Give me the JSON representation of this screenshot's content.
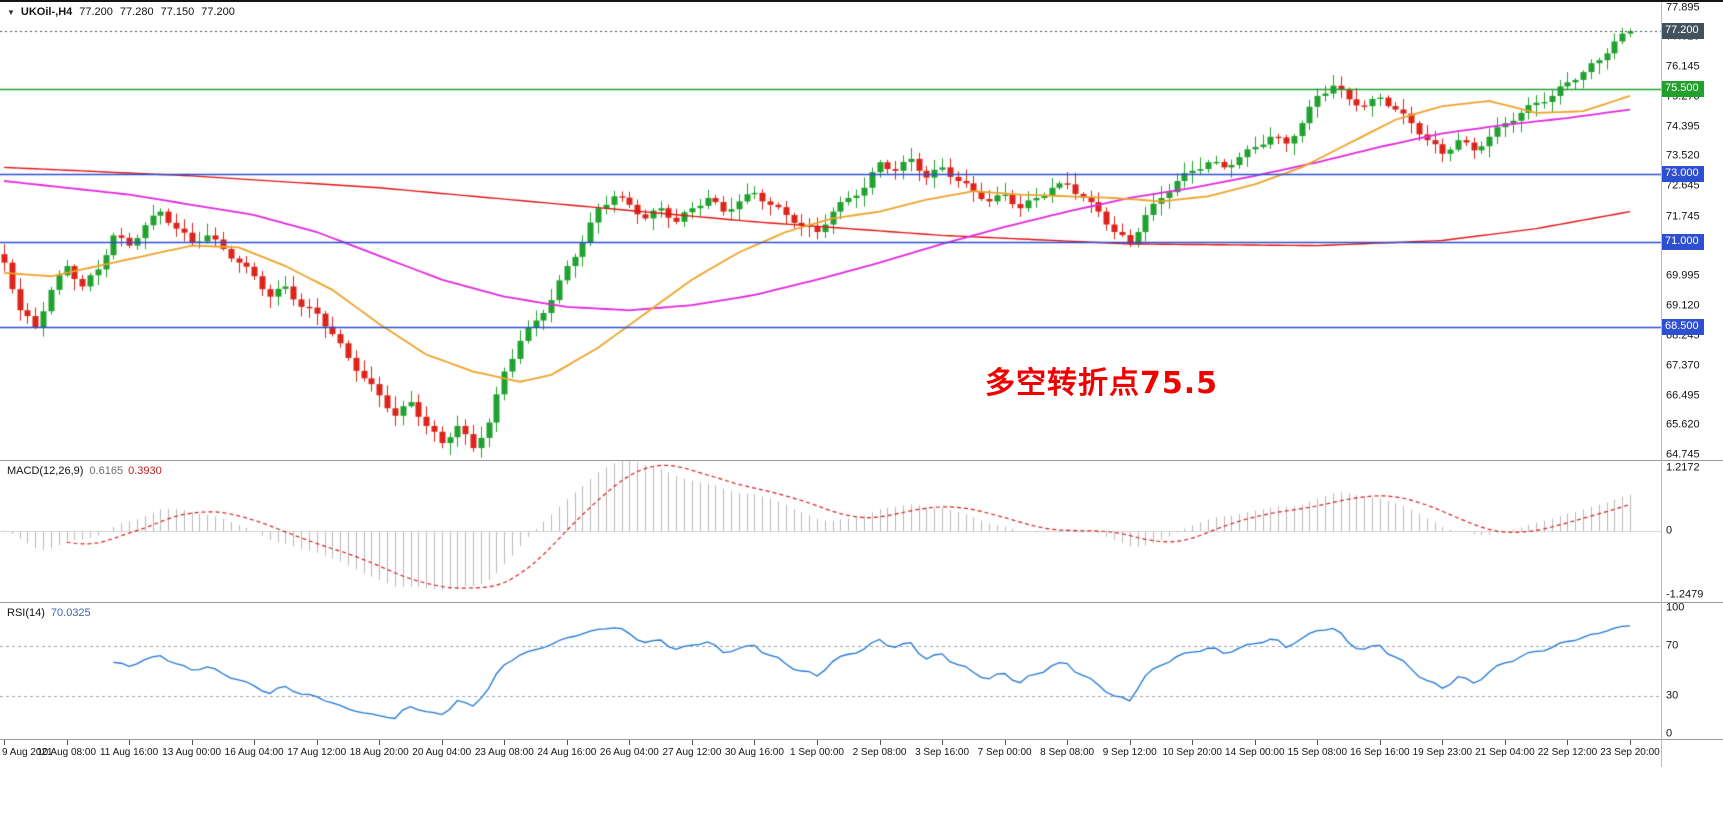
{
  "header": {
    "symbol_period": "UKOil-,H4",
    "open": "77.200",
    "high": "77.280",
    "low": "77.150",
    "close": "77.200"
  },
  "colors": {
    "up": "#21a12f",
    "down": "#dc241a",
    "ma_slow_red": "#e01414",
    "ma_mid_magenta": "#e128dd",
    "ma_fast_orange": "#eea32a",
    "hline_blue": "#2e4fd0",
    "hline_green": "#23a02c",
    "current_price": "#42525c",
    "macd_hist": "#b8b8b8",
    "macd_signal": "#d42020",
    "rsi_line": "#1f76d2",
    "rsi_level": "#9aa4b5",
    "text": "#141414",
    "separator": "#9a9a9a"
  },
  "macd_panel": {
    "title": "MACD(12,26,9)",
    "main_value": "0.6165",
    "signal_value": "0.3930"
  },
  "rsi_panel": {
    "title": "RSI(14)",
    "value": "70.0325"
  },
  "chart_data": {
    "type": "candlestick",
    "symbol": "UKOil",
    "timeframe": "H4",
    "last_ohlc": {
      "open": 77.2,
      "high": 77.28,
      "low": 77.15,
      "close": 77.2
    },
    "ylim": [
      64.6,
      78.06
    ],
    "y_tick_labels": [
      "77.895",
      "77.020",
      "76.145",
      "75.270",
      "74.395",
      "73.520",
      "72.645",
      "71.745",
      "70.870",
      "69.995",
      "69.120",
      "68.245",
      "67.370",
      "66.495",
      "65.620",
      "64.745"
    ],
    "x_tick_labels": [
      "9 Aug 2021",
      "10 Aug 08:00",
      "11 Aug 16:00",
      "13 Aug 00:00",
      "16 Aug 04:00",
      "17 Aug 12:00",
      "18 Aug 20:00",
      "20 Aug 04:00",
      "23 Aug 08:00",
      "24 Aug 16:00",
      "26 Aug 04:00",
      "27 Aug 12:00",
      "30 Aug 16:00",
      "1 Sep 00:00",
      "2 Sep 08:00",
      "3 Sep 16:00",
      "7 Sep 00:00",
      "8 Sep 08:00",
      "9 Sep 12:00",
      "10 Sep 20:00",
      "14 Sep 00:00",
      "15 Sep 08:00",
      "16 Sep 16:00",
      "19 Sep 23:00",
      "21 Sep 04:00",
      "22 Sep 12:00",
      "23 Sep 20:00"
    ],
    "candles_per_x_tick": 8,
    "closes": [
      70.4,
      69.62,
      69.0,
      68.83,
      68.5,
      68.97,
      69.6,
      70.03,
      70.3,
      69.92,
      69.7,
      70.03,
      70.2,
      70.62,
      71.2,
      71.13,
      70.9,
      71.12,
      71.5,
      71.78,
      71.9,
      71.57,
      71.4,
      71.28,
      71.0,
      71.02,
      71.2,
      71.08,
      70.8,
      70.52,
      70.4,
      70.28,
      70.0,
      69.62,
      69.4,
      69.63,
      69.7,
      69.32,
      69.1,
      69.08,
      68.9,
      68.52,
      68.3,
      68.03,
      67.6,
      67.22,
      67.0,
      66.83,
      66.5,
      66.12,
      65.9,
      66.18,
      66.3,
      65.87,
      65.6,
      65.43,
      65.1,
      65.27,
      65.6,
      65.36,
      64.95,
      65.25,
      65.7,
      66.53,
      67.2,
      67.57,
      68.1,
      68.48,
      68.7,
      68.92,
      69.3,
      69.88,
      70.3,
      70.57,
      71.0,
      71.58,
      72.0,
      72.1,
      72.35,
      72.31,
      72.1,
      71.82,
      71.7,
      71.93,
      72.0,
      71.72,
      71.6,
      71.88,
      72.0,
      72.07,
      72.3,
      72.18,
      71.9,
      71.97,
      72.2,
      72.41,
      72.45,
      72.2,
      72.1,
      72.03,
      71.8,
      71.57,
      71.5,
      71.48,
      71.3,
      71.52,
      71.9,
      72.18,
      72.3,
      72.37,
      72.6,
      73.06,
      73.35,
      73.15,
      73.1,
      73.36,
      73.45,
      73.1,
      72.9,
      73.13,
      73.2,
      72.92,
      72.8,
      72.73,
      72.5,
      72.27,
      72.2,
      72.38,
      72.4,
      72.12,
      72.0,
      72.23,
      72.3,
      72.37,
      72.6,
      72.73,
      72.7,
      72.42,
      72.3,
      72.18,
      71.9,
      71.52,
      71.3,
      71.21,
      70.95,
      71.3,
      71.8,
      72.13,
      72.3,
      72.47,
      72.8,
      73.03,
      73.1,
      73.15,
      73.35,
      73.36,
      73.2,
      73.27,
      73.5,
      73.73,
      73.8,
      73.87,
      74.1,
      74.08,
      73.9,
      74.12,
      74.5,
      74.98,
      75.3,
      75.37,
      75.6,
      75.48,
      75.2,
      75.02,
      75.0,
      75.21,
      75.25,
      75.0,
      74.9,
      74.78,
      74.5,
      74.17,
      74.0,
      73.88,
      73.6,
      73.72,
      74.0,
      73.93,
      73.7,
      73.82,
      74.1,
      74.38,
      74.5,
      74.57,
      74.8,
      75.03,
      75.1,
      75.12,
      75.3,
      75.58,
      75.7,
      75.77,
      76.0,
      76.26,
      76.35,
      76.55,
      76.9,
      77.13,
      77.2
    ],
    "moving_averages": [
      {
        "name": "slow",
        "color_key": "ma_slow_red",
        "points": [
          [
            0,
            73.2
          ],
          [
            24,
            72.95
          ],
          [
            48,
            72.6
          ],
          [
            72,
            72.1
          ],
          [
            96,
            71.6
          ],
          [
            120,
            71.2
          ],
          [
            144,
            70.95
          ],
          [
            168,
            70.9
          ],
          [
            184,
            71.05
          ],
          [
            196,
            71.4
          ],
          [
            208,
            71.9
          ]
        ]
      },
      {
        "name": "medium",
        "color_key": "ma_mid_magenta",
        "points": [
          [
            0,
            72.8
          ],
          [
            16,
            72.4
          ],
          [
            32,
            71.8
          ],
          [
            40,
            71.3
          ],
          [
            48,
            70.6
          ],
          [
            56,
            69.9
          ],
          [
            64,
            69.4
          ],
          [
            72,
            69.1
          ],
          [
            80,
            69.0
          ],
          [
            88,
            69.15
          ],
          [
            96,
            69.45
          ],
          [
            104,
            69.9
          ],
          [
            112,
            70.4
          ],
          [
            120,
            70.95
          ],
          [
            128,
            71.45
          ],
          [
            136,
            71.9
          ],
          [
            144,
            72.3
          ],
          [
            152,
            72.6
          ],
          [
            160,
            72.95
          ],
          [
            168,
            73.35
          ],
          [
            176,
            73.8
          ],
          [
            184,
            74.2
          ],
          [
            192,
            74.45
          ],
          [
            200,
            74.65
          ],
          [
            208,
            74.9
          ]
        ]
      },
      {
        "name": "fast",
        "color_key": "ma_fast_orange",
        "points": [
          [
            0,
            70.1
          ],
          [
            6,
            70.0
          ],
          [
            12,
            70.3
          ],
          [
            18,
            70.6
          ],
          [
            24,
            70.9
          ],
          [
            30,
            70.85
          ],
          [
            36,
            70.3
          ],
          [
            42,
            69.6
          ],
          [
            48,
            68.6
          ],
          [
            54,
            67.7
          ],
          [
            60,
            67.2
          ],
          [
            66,
            66.9
          ],
          [
            70,
            67.1
          ],
          [
            76,
            67.9
          ],
          [
            82,
            68.9
          ],
          [
            88,
            69.9
          ],
          [
            94,
            70.7
          ],
          [
            100,
            71.3
          ],
          [
            106,
            71.7
          ],
          [
            112,
            71.9
          ],
          [
            118,
            72.25
          ],
          [
            124,
            72.5
          ],
          [
            130,
            72.4
          ],
          [
            136,
            72.35
          ],
          [
            142,
            72.3
          ],
          [
            148,
            72.2
          ],
          [
            154,
            72.35
          ],
          [
            160,
            72.7
          ],
          [
            166,
            73.2
          ],
          [
            172,
            73.9
          ],
          [
            178,
            74.6
          ],
          [
            184,
            75.0
          ],
          [
            190,
            75.15
          ],
          [
            196,
            74.8
          ],
          [
            202,
            74.85
          ],
          [
            208,
            75.3
          ]
        ]
      }
    ],
    "levels": [
      {
        "label": "77.200",
        "value": 77.2,
        "kind": "current-price",
        "color": "#42525c"
      },
      {
        "label": "75.500",
        "value": 75.5,
        "kind": "horizontal-line",
        "color": "#23a02c"
      },
      {
        "label": "73.000",
        "value": 73.0,
        "kind": "horizontal-line",
        "color": "#2e4fd0"
      },
      {
        "label": "71.000",
        "value": 71.0,
        "kind": "horizontal-line",
        "color": "#2e4fd0"
      },
      {
        "label": "68.500",
        "value": 68.5,
        "kind": "horizontal-line",
        "color": "#2e4fd0"
      }
    ],
    "annotation": {
      "text": "多空转折点75.5",
      "color": "#f20000",
      "x": 985,
      "y": 356,
      "font_size": 30
    },
    "indicators": [
      {
        "type": "macd",
        "params": [
          12,
          26,
          9
        ],
        "main_value": 0.6165,
        "signal_value": 0.393,
        "axis_labels": [
          "1.2172",
          "0",
          "-1.2479"
        ],
        "axis_range": [
          -1.38,
          1.35
        ]
      },
      {
        "type": "rsi",
        "period": 14,
        "value": 70.0325,
        "axis_labels": [
          "100",
          "70",
          "30",
          "0"
        ],
        "levels": [
          70,
          30
        ],
        "range": [
          0,
          100
        ]
      }
    ]
  }
}
